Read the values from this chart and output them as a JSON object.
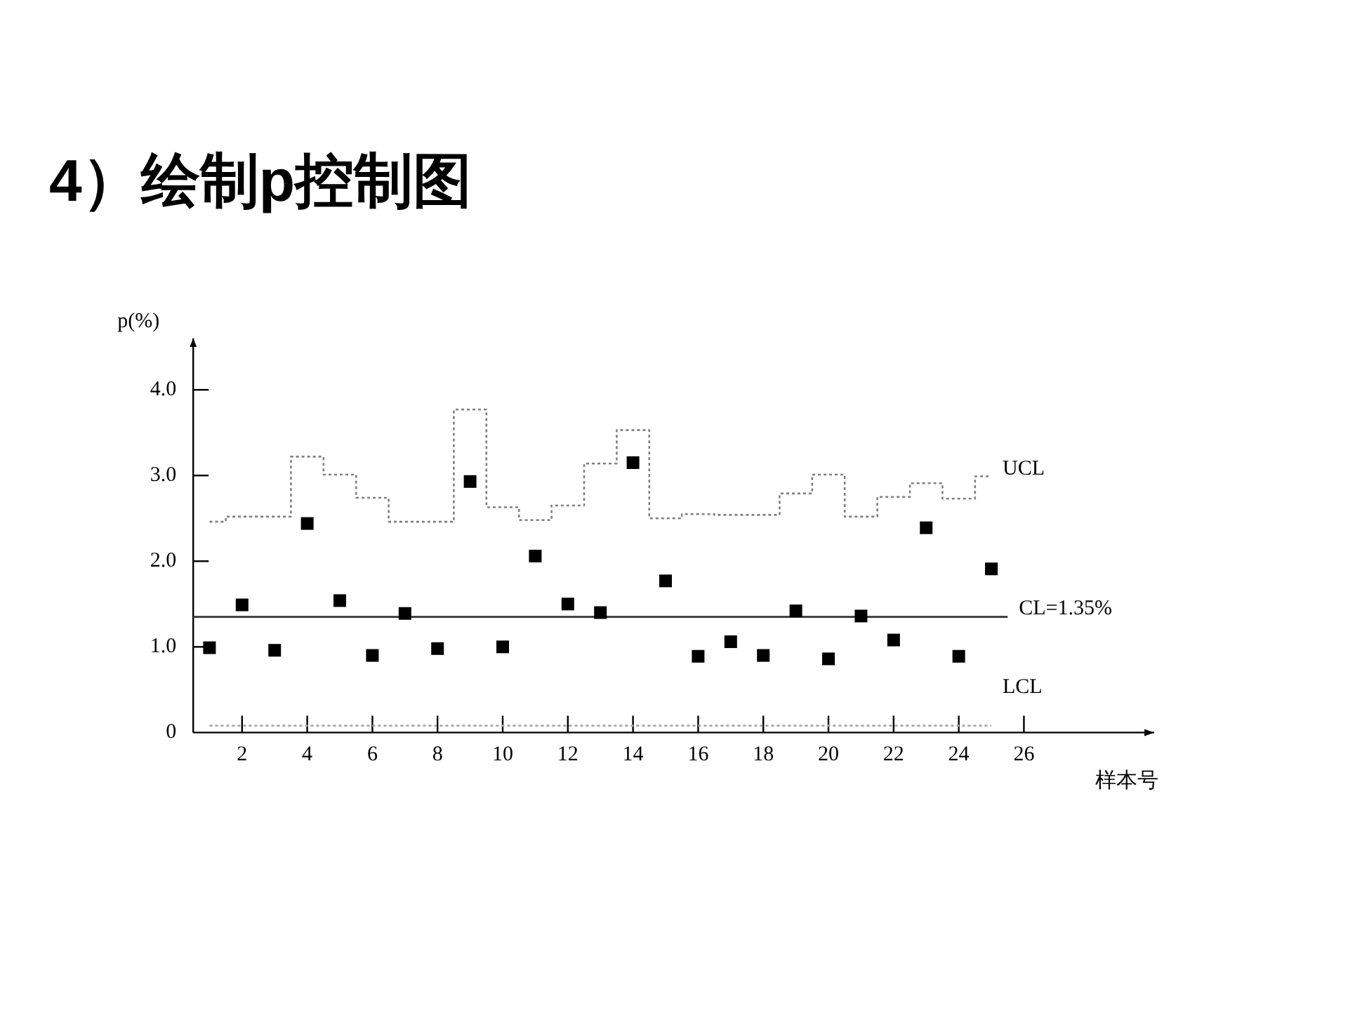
{
  "chart_data": {
    "type": "scatter",
    "title": "4）绘制p控制图",
    "xlabel": "样本号",
    "ylabel": "p(%)",
    "x": [
      1,
      2,
      3,
      4,
      5,
      6,
      7,
      8,
      9,
      10,
      11,
      12,
      13,
      14,
      15,
      16,
      17,
      18,
      19,
      20,
      21,
      22,
      23,
      24,
      25
    ],
    "xlim": [
      0.5,
      30
    ],
    "xticks": [
      2,
      4,
      6,
      8,
      10,
      12,
      14,
      16,
      18,
      20,
      22,
      24,
      26
    ],
    "ylim": [
      0,
      4.6
    ],
    "yticks": [
      0,
      {
        "value": 1,
        "label": "1.0"
      },
      {
        "value": 2,
        "label": "2.0"
      },
      {
        "value": 3,
        "label": "3.0"
      },
      {
        "value": 4,
        "label": "4.0"
      }
    ],
    "ref_lines": [
      {
        "axis": "y",
        "value": 1.35,
        "label": "CL=1.35%",
        "color": "#333333"
      }
    ],
    "series": [
      {
        "type": "step",
        "name": "UCL",
        "color": "#7f7f7f",
        "line_style": "dotted",
        "values": [
          2.46,
          2.52,
          2.52,
          3.22,
          3.01,
          2.74,
          2.46,
          2.46,
          3.77,
          2.63,
          2.48,
          2.65,
          3.14,
          3.53,
          2.5,
          2.55,
          2.54,
          2.54,
          2.79,
          3.01,
          2.52,
          2.75,
          2.91,
          2.73,
          2.99
        ]
      },
      {
        "type": "step",
        "name": "LCL",
        "color": "#a6a6a6",
        "line_style": "dotted",
        "values": [
          0.08,
          0.08,
          0.08,
          0.08,
          0.08,
          0.08,
          0.08,
          0.08,
          0.08,
          0.08,
          0.08,
          0.08,
          0.08,
          0.08,
          0.08,
          0.08,
          0.08,
          0.08,
          0.08,
          0.08,
          0.08,
          0.08,
          0.08,
          0.08,
          0.08
        ]
      },
      {
        "color": "#000000",
        "marker": "square",
        "values": [
          0.99,
          1.49,
          0.96,
          2.44,
          1.54,
          0.9,
          1.39,
          0.98,
          2.93,
          1.0,
          2.06,
          1.5,
          1.4,
          3.15,
          1.77,
          0.89,
          1.06,
          0.9,
          1.42,
          0.86,
          1.36,
          1.08,
          2.39,
          0.89,
          1.91
        ]
      }
    ]
  }
}
